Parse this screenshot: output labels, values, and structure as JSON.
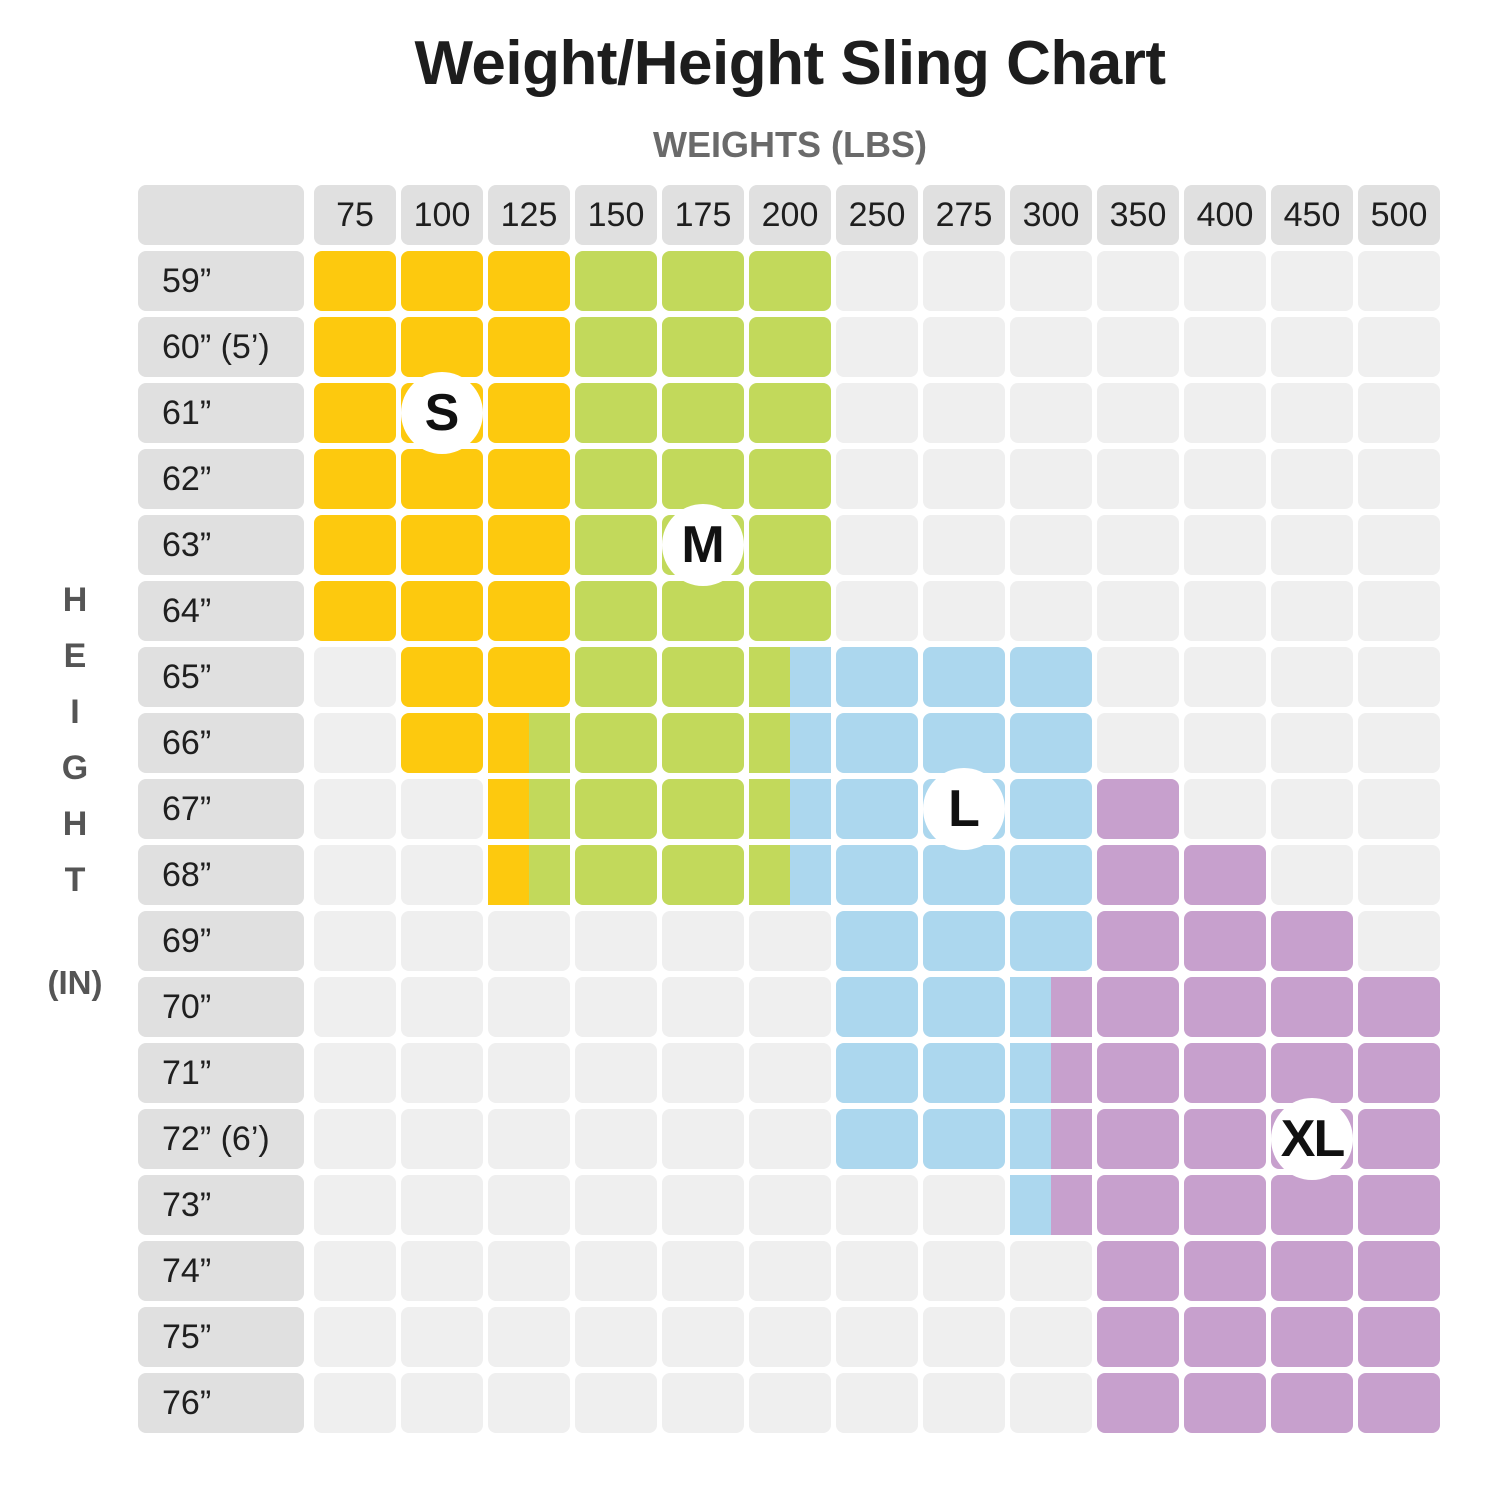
{
  "title": "Weight/Height Sling Chart",
  "x_axis_label": "WEIGHTS (LBS)",
  "y_axis_letters": [
    "H",
    "E",
    "I",
    "G",
    "H",
    "T"
  ],
  "y_axis_unit": "(IN)",
  "colors": {
    "S": "#fdc90e",
    "M": "#c2d95b",
    "L": "#acd7ee",
    "XL": "#c7a0cd",
    "empty": "#efefef",
    "header": "#e0e0e0"
  },
  "chart_data": {
    "type": "table",
    "title": "Weight/Height Sling Chart",
    "xlabel": "WEIGHTS (LBS)",
    "ylabel": "HEIGHT (IN)",
    "weights": [
      "75",
      "100",
      "125",
      "150",
      "175",
      "200",
      "250",
      "275",
      "300",
      "350",
      "400",
      "450",
      "500"
    ],
    "heights": [
      "59”",
      "60” (5’)",
      "61”",
      "62”",
      "63”",
      "64”",
      "65”",
      "66”",
      "67”",
      "68”",
      "69”",
      "70”",
      "71”",
      "72” (6’)",
      "73”",
      "74”",
      "75”",
      "76”"
    ],
    "size_labels": [
      "S",
      "M",
      "L",
      "XL"
    ],
    "grid": [
      [
        "S",
        "S",
        "S",
        "M",
        "M",
        "M",
        "",
        "",
        "",
        "",
        "",
        "",
        ""
      ],
      [
        "S",
        "S",
        "S",
        "M",
        "M",
        "M",
        "",
        "",
        "",
        "",
        "",
        "",
        ""
      ],
      [
        "S",
        "S",
        "S",
        "M",
        "M",
        "M",
        "",
        "",
        "",
        "",
        "",
        "",
        ""
      ],
      [
        "S",
        "S",
        "S",
        "M",
        "M",
        "M",
        "",
        "",
        "",
        "",
        "",
        "",
        ""
      ],
      [
        "S",
        "S",
        "S",
        "M",
        "M",
        "M",
        "",
        "",
        "",
        "",
        "",
        "",
        ""
      ],
      [
        "S",
        "S",
        "S",
        "M",
        "M",
        "M",
        "",
        "",
        "",
        "",
        "",
        "",
        ""
      ],
      [
        "",
        "S",
        "S",
        "M",
        "M",
        "M/L",
        "L",
        "L",
        "L",
        "",
        "",
        "",
        ""
      ],
      [
        "",
        "S",
        "S/M",
        "M",
        "M",
        "M/L",
        "L",
        "L",
        "L",
        "",
        "",
        "",
        ""
      ],
      [
        "",
        "",
        "S/M",
        "M",
        "M",
        "M/L",
        "L",
        "L",
        "L",
        "XL",
        "",
        "",
        ""
      ],
      [
        "",
        "",
        "S/M",
        "M",
        "M",
        "M/L",
        "L",
        "L",
        "L",
        "XL",
        "XL",
        "",
        ""
      ],
      [
        "",
        "",
        "",
        "",
        "",
        "",
        "L",
        "L",
        "L",
        "XL",
        "XL",
        "XL",
        ""
      ],
      [
        "",
        "",
        "",
        "",
        "",
        "",
        "L",
        "L",
        "L/XL",
        "XL",
        "XL",
        "XL",
        "XL"
      ],
      [
        "",
        "",
        "",
        "",
        "",
        "",
        "L",
        "L",
        "L/XL",
        "XL",
        "XL",
        "XL",
        "XL"
      ],
      [
        "",
        "",
        "",
        "",
        "",
        "",
        "L",
        "L",
        "L/XL",
        "XL",
        "XL",
        "XL",
        "XL"
      ],
      [
        "",
        "",
        "",
        "",
        "",
        "",
        "",
        "",
        "L/XL",
        "XL",
        "XL",
        "XL",
        "XL"
      ],
      [
        "",
        "",
        "",
        "",
        "",
        "",
        "",
        "",
        "",
        "XL",
        "XL",
        "XL",
        "XL"
      ],
      [
        "",
        "",
        "",
        "",
        "",
        "",
        "",
        "",
        "",
        "XL",
        "XL",
        "XL",
        "XL"
      ],
      [
        "",
        "",
        "",
        "",
        "",
        "",
        "",
        "",
        "",
        "XL",
        "XL",
        "XL",
        "XL"
      ]
    ]
  }
}
